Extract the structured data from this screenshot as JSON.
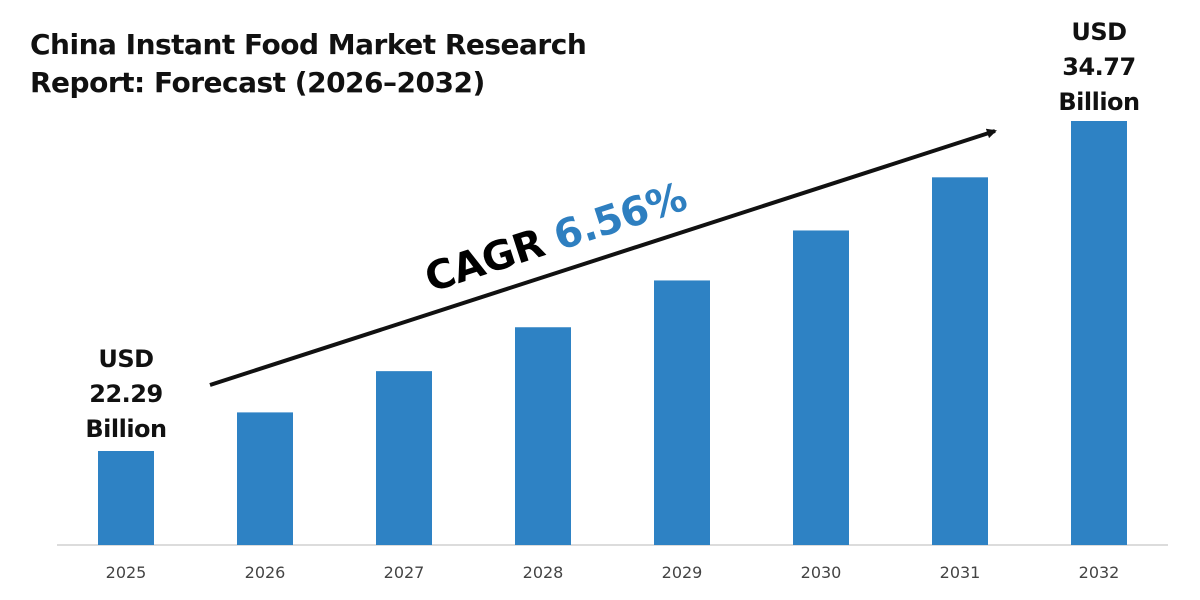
{
  "chart_data": {
    "type": "bar",
    "title": "China Instant Food Market Research Report: Forecast (2026-2032)",
    "title_lines": [
      "China Instant Food Market Research",
      "Report: Forecast (2026–2032)"
    ],
    "categories": [
      "2025",
      "2026",
      "2027",
      "2028",
      "2029",
      "2030",
      "2031",
      "2032"
    ],
    "values": [
      22.29,
      23.75,
      25.31,
      26.97,
      28.74,
      30.63,
      32.64,
      34.77
    ],
    "unit": "USD Billion",
    "xlabel": "",
    "ylabel": "",
    "grid": false,
    "bar_color": "#2e82c4",
    "annotations": {
      "start": {
        "line1": "USD",
        "line2": "22.29",
        "line3": "Billion"
      },
      "end": {
        "line1": "USD",
        "line2": "34.77",
        "line3": "Billion"
      },
      "cagr_label": "CAGR",
      "cagr_value": "6.56%",
      "cagr_color": "#2e7fc0"
    }
  }
}
